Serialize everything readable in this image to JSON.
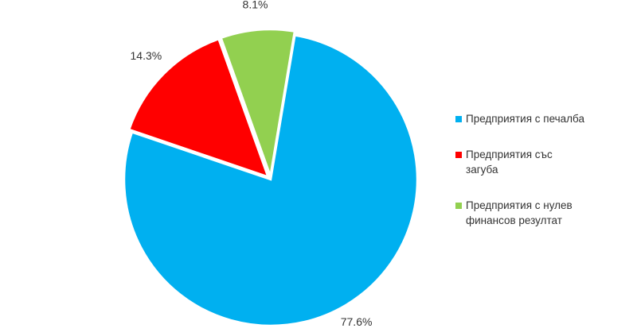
{
  "chart_data": {
    "type": "pie",
    "categories": [
      "Предприятия с печалба",
      "Предприятия със загуба",
      "Предприятия с нулев финансов резултат"
    ],
    "values": [
      77.6,
      14.3,
      8.1
    ],
    "value_labels": [
      "77.6%",
      "14.3%",
      "8.1%"
    ],
    "colors": [
      "#00b0f0",
      "#ff0000",
      "#92d050"
    ],
    "legend": "right"
  }
}
